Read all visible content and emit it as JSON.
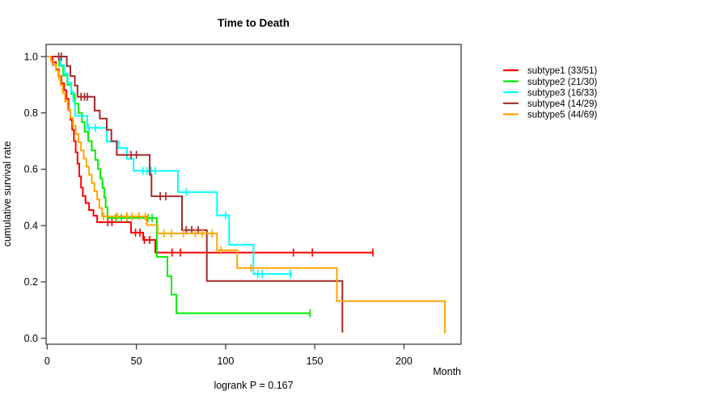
{
  "chart_data": {
    "type": "line",
    "chart_style": "kaplan-meier-step",
    "title": "Time to Death",
    "xlabel": "Month",
    "ylabel": "cumulative survival rate",
    "annotation": "logrank P = 0.167",
    "xlim": [
      0,
      232
    ],
    "ylim": [
      0.0,
      1.0
    ],
    "xticks": [
      0,
      50,
      100,
      150,
      200
    ],
    "xtick_labels": [
      "0",
      "50",
      "100",
      "150",
      "200"
    ],
    "yticks": [
      0.0,
      0.2,
      0.4,
      0.6,
      0.8,
      1.0
    ],
    "ytick_labels": [
      "0.0",
      "0.2",
      "0.4",
      "0.6",
      "0.8",
      "1.0"
    ],
    "grid": false,
    "legend_position": "right-outside",
    "series": [
      {
        "name": "subtype1 (33/51)",
        "label": "subtype1",
        "events_ratio": "33/51",
        "color": "#ff0000",
        "steps": [
          [
            0,
            1
          ],
          [
            3,
            0.98
          ],
          [
            5,
            0.955
          ],
          [
            6.5,
            0.93
          ],
          [
            8,
            0.905
          ],
          [
            9.5,
            0.88
          ],
          [
            10.8,
            0.85
          ],
          [
            12,
            0.81
          ],
          [
            13,
            0.775
          ],
          [
            14,
            0.74
          ],
          [
            15,
            0.7
          ],
          [
            16,
            0.66
          ],
          [
            17,
            0.62
          ],
          [
            18,
            0.575
          ],
          [
            19,
            0.535
          ],
          [
            20,
            0.505
          ],
          [
            21.5,
            0.48
          ],
          [
            23.5,
            0.455
          ],
          [
            26,
            0.435
          ],
          [
            28,
            0.412
          ],
          [
            47,
            0.375
          ],
          [
            53.8,
            0.349
          ],
          [
            60.6,
            0.304
          ]
        ],
        "censor_times": [
          3.2,
          34,
          36.3,
          49.5,
          52,
          54.5,
          57.5,
          70,
          74.7,
          138,
          148.6,
          182.6
        ],
        "end_time": 182.6,
        "end_censored": true
      },
      {
        "name": "subtype2 (21/30)",
        "label": "subtype2",
        "events_ratio": "21/30",
        "color": "#00ee00",
        "steps": [
          [
            0,
            1
          ],
          [
            6.7,
            0.967
          ],
          [
            9,
            0.933
          ],
          [
            11.3,
            0.9
          ],
          [
            13.5,
            0.867
          ],
          [
            15.5,
            0.833
          ],
          [
            17.5,
            0.8
          ],
          [
            19.5,
            0.767
          ],
          [
            21,
            0.733
          ],
          [
            23,
            0.7
          ],
          [
            25,
            0.667
          ],
          [
            27,
            0.633
          ],
          [
            28.5,
            0.6
          ],
          [
            29.8,
            0.567
          ],
          [
            31,
            0.533
          ],
          [
            32,
            0.5
          ],
          [
            32.8,
            0.465
          ],
          [
            33.8,
            0.427
          ],
          [
            61.5,
            0.289
          ],
          [
            67.4,
            0.22
          ],
          [
            69.7,
            0.155
          ],
          [
            72.4,
            0.089
          ]
        ],
        "censor_times": [
          38.4,
          41.6,
          44.9,
          56.5,
          58.8,
          147.4
        ],
        "end_time": 147.4,
        "end_censored": true
      },
      {
        "name": "subtype3 (16/33)",
        "label": "subtype3",
        "events_ratio": "16/33",
        "color": "#00ffff",
        "steps": [
          [
            0,
            1
          ],
          [
            7.5,
            0.969
          ],
          [
            9.5,
            0.939
          ],
          [
            11.5,
            0.908
          ],
          [
            13.5,
            0.875
          ],
          [
            14.6,
            0.84
          ],
          [
            15.7,
            0.79
          ],
          [
            22.5,
            0.747
          ],
          [
            33.4,
            0.698
          ],
          [
            40,
            0.675
          ],
          [
            44.7,
            0.637
          ],
          [
            48.4,
            0.594
          ],
          [
            73.3,
            0.519
          ],
          [
            95.2,
            0.436
          ],
          [
            102,
            0.332
          ],
          [
            115.6,
            0.228
          ]
        ],
        "censor_times": [
          23.5,
          27,
          53.7,
          56,
          58.3,
          60.6,
          78,
          100,
          118,
          120.5,
          136.4
        ],
        "end_time": 137.2,
        "end_censored": true
      },
      {
        "name": "subtype4 (14/29)",
        "label": "subtype4",
        "events_ratio": "14/29",
        "color": "#a52a2a",
        "steps": [
          [
            0,
            1
          ],
          [
            11,
            0.966
          ],
          [
            13,
            0.931
          ],
          [
            15.5,
            0.897
          ],
          [
            17,
            0.857
          ],
          [
            26.6,
            0.808
          ],
          [
            29.5,
            0.78
          ],
          [
            33.4,
            0.74
          ],
          [
            36,
            0.7
          ],
          [
            39,
            0.651
          ],
          [
            57.5,
            0.58
          ],
          [
            58.5,
            0.504
          ],
          [
            75.6,
            0.384
          ],
          [
            89.5,
            0.203
          ],
          [
            165.5,
            0.02
          ]
        ],
        "censor_times": [
          6.5,
          8,
          19,
          21,
          22.5,
          47,
          50,
          63.4,
          66.5,
          78,
          81,
          84.7
        ],
        "end_time": 165.5,
        "end_censored": false
      },
      {
        "name": "subtype5 (44/69)",
        "label": "subtype5",
        "events_ratio": "44/69",
        "color": "#ffa500",
        "steps": [
          [
            0,
            1
          ],
          [
            2,
            0.986
          ],
          [
            3.5,
            0.971
          ],
          [
            5,
            0.95
          ],
          [
            6.2,
            0.928
          ],
          [
            7.5,
            0.899
          ],
          [
            8.7,
            0.87
          ],
          [
            10,
            0.841
          ],
          [
            11.5,
            0.812
          ],
          [
            13,
            0.783
          ],
          [
            14.5,
            0.754
          ],
          [
            16,
            0.725
          ],
          [
            17.5,
            0.696
          ],
          [
            19,
            0.667
          ],
          [
            20.5,
            0.638
          ],
          [
            22,
            0.609
          ],
          [
            23.5,
            0.58
          ],
          [
            25,
            0.551
          ],
          [
            26.5,
            0.522
          ],
          [
            28,
            0.493
          ],
          [
            29.3,
            0.462
          ],
          [
            30.8,
            0.433
          ],
          [
            55.8,
            0.402
          ],
          [
            61.9,
            0.372
          ],
          [
            95.2,
            0.312
          ],
          [
            106.5,
            0.249
          ],
          [
            162.4,
            0.132
          ],
          [
            222.9,
            0.017
          ]
        ],
        "censor_times": [
          6.7,
          31.6,
          39.3,
          44.7,
          47.5,
          51.5,
          55,
          65.6,
          69.7,
          76.5,
          83,
          87,
          92.4,
          97.4,
          114.3
        ],
        "end_time": 222.9,
        "end_censored": false
      }
    ]
  }
}
